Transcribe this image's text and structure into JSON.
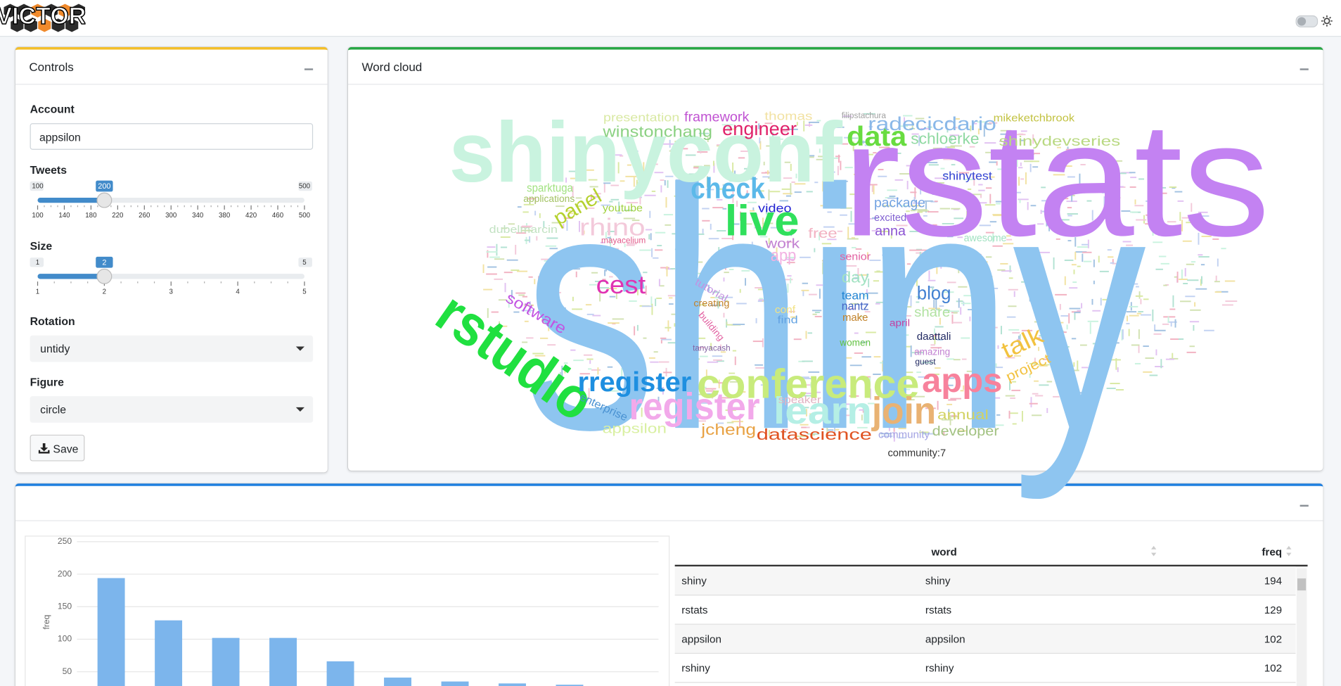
{
  "header": {
    "logo": "VICTOR"
  },
  "controls": {
    "title": "Controls",
    "account": {
      "label": "Account",
      "value": "appsilon"
    },
    "tweets": {
      "label": "Tweets",
      "min": 100,
      "max": 500,
      "value": 200,
      "ticks": [
        100,
        140,
        180,
        220,
        260,
        300,
        340,
        380,
        420,
        460,
        500
      ]
    },
    "size": {
      "label": "Size",
      "min": 1,
      "max": 5,
      "value": 2,
      "ticks": [
        1,
        2,
        3,
        4,
        5
      ]
    },
    "rotation": {
      "label": "Rotation",
      "value": "untidy"
    },
    "figure": {
      "label": "Figure",
      "value": "circle"
    },
    "save": "Save"
  },
  "word_cloud": {
    "title": "Word cloud",
    "caption": "community:7",
    "words": [
      {
        "text": "shiny",
        "color": "#8ec5f0"
      },
      {
        "text": "rstats",
        "color": "#c382f2"
      },
      {
        "text": "shinyconf",
        "color": "#c9f3df"
      },
      {
        "text": "rstudio",
        "color": "#20e040"
      },
      {
        "text": "conference",
        "color": "#c8eb7c"
      },
      {
        "text": "register",
        "color": "#f2a9ea"
      },
      {
        "text": "rregister",
        "color": "#1e8fe0"
      },
      {
        "text": "apps",
        "color": "#f7829c"
      },
      {
        "text": "join",
        "color": "#e9b273"
      },
      {
        "text": "learn",
        "color": "#b5efe5"
      },
      {
        "text": "live",
        "color": "#30e05c"
      },
      {
        "text": "check",
        "color": "#5cb9e9"
      },
      {
        "text": "data",
        "color": "#68dc40"
      },
      {
        "text": "cest",
        "color": "#e033b2"
      },
      {
        "text": "rhino",
        "color": "#f3c9da"
      },
      {
        "text": "panel",
        "color": "#b5d12f"
      },
      {
        "text": "engineer",
        "color": "#e0226a"
      },
      {
        "text": "winstonchang",
        "color": "#8bd182"
      },
      {
        "text": "radecicdario",
        "color": "#8ab8e8"
      },
      {
        "text": "schloerke",
        "color": "#8fd9a2"
      },
      {
        "text": "shinydevseries",
        "color": "#b9d982"
      },
      {
        "text": "framework",
        "color": "#c052d2"
      },
      {
        "text": "presentation",
        "color": "#d9e9a3"
      },
      {
        "text": "datascience",
        "color": "#e05322"
      },
      {
        "text": "developer",
        "color": "#a2c282"
      },
      {
        "text": "jcheng",
        "color": "#e8a244"
      },
      {
        "text": "appsilon",
        "color": "#d9f0a2"
      },
      {
        "text": "talk",
        "color": "#f2c23f"
      },
      {
        "text": "blog",
        "color": "#4281d2"
      },
      {
        "text": "package",
        "color": "#72a2e2"
      },
      {
        "text": "shinytest",
        "color": "#3343d2"
      },
      {
        "text": "software",
        "color": "#c253e2"
      },
      {
        "text": "video",
        "color": "#2222d2"
      },
      {
        "text": "youtube",
        "color": "#a2d242"
      },
      {
        "text": "sparktuga",
        "color": "#a2e282"
      },
      {
        "text": "anna",
        "color": "#8a52d2"
      },
      {
        "text": "team",
        "color": "#2284d2"
      },
      {
        "text": "nantz",
        "color": "#4262c2"
      },
      {
        "text": "make",
        "color": "#c2822a"
      },
      {
        "text": "women",
        "color": "#62c242"
      },
      {
        "text": "project",
        "color": "#f2c242"
      },
      {
        "text": "annual",
        "color": "#d2d262"
      },
      {
        "text": "enterprise",
        "color": "#4a92d2"
      },
      {
        "text": "tutorial",
        "color": "#c292e2"
      },
      {
        "text": "building",
        "color": "#e262a2"
      },
      {
        "text": "creating",
        "color": "#c2822a"
      },
      {
        "text": "speaker",
        "color": "#e2b2c2"
      },
      {
        "text": "community",
        "color": "#a2a2e2"
      },
      {
        "text": "amazing",
        "color": "#c282d2"
      },
      {
        "text": "april",
        "color": "#c242a2"
      },
      {
        "text": "daattali",
        "color": "#222a62"
      },
      {
        "text": "share",
        "color": "#b2e2a2"
      },
      {
        "text": "day",
        "color": "#a2e2c2"
      },
      {
        "text": "work",
        "color": "#c282d2"
      },
      {
        "text": "free",
        "color": "#f2b2c2"
      },
      {
        "text": "excited",
        "color": "#8262d2"
      },
      {
        "text": "mikeketchbrook",
        "color": "#c2c242"
      },
      {
        "text": "filipstachura",
        "color": "#a2a2a2"
      },
      {
        "text": "dubelmarcin",
        "color": "#c2e2c2"
      },
      {
        "text": "mayacelium",
        "color": "#e25a8a"
      },
      {
        "text": "applications",
        "color": "#a2c262"
      },
      {
        "text": "senior",
        "color": "#e262a2"
      },
      {
        "text": "app",
        "color": "#f2b2e2"
      },
      {
        "text": "find",
        "color": "#62a2e2"
      },
      {
        "text": "conf",
        "color": "#f2e282"
      },
      {
        "text": "guest",
        "color": "#222a62"
      },
      {
        "text": "awesome",
        "color": "#a2e2c2"
      },
      {
        "text": "tanyacash",
        "color": "#8262a2"
      },
      {
        "text": "thomas",
        "color": "#f2e2a2"
      }
    ]
  },
  "chart_data": {
    "type": "bar",
    "y_label": "freq",
    "categories": [
      null,
      null,
      null,
      null,
      null,
      null,
      null,
      null,
      null
    ],
    "values": [
      194,
      129,
      102,
      102,
      66,
      41,
      35,
      32,
      30
    ],
    "color": "#7cb5ec",
    "ylim": [
      0,
      250
    ],
    "yticks": [
      50,
      100,
      150,
      200,
      250
    ],
    "grid": true
  },
  "table": {
    "columns": [
      "word",
      "freq"
    ],
    "rows": [
      [
        "shiny",
        "shiny",
        194
      ],
      [
        "rstats",
        "rstats",
        129
      ],
      [
        "appsilon",
        "appsilon",
        102
      ],
      [
        "rshiny",
        "rshiny",
        102
      ]
    ]
  }
}
